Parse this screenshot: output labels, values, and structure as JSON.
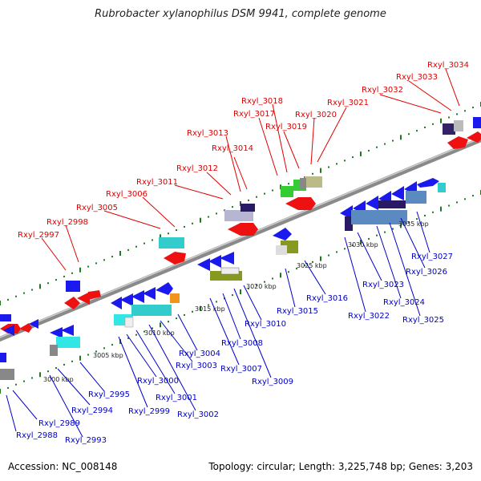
{
  "title": "Rubrobacter xylanophilus DSM 9941, complete genome",
  "footer": {
    "accession": "Accession: NC_008148",
    "summary": "Topology: circular; Length: 3,225,748 bp; Genes: 3,203"
  },
  "colors": {
    "plus_label": "#e00000",
    "minus_label": "#0000cc",
    "backbone": "#888888",
    "tick": "#1f7a1f"
  },
  "kbp_marks": [
    "3000 kbp",
    "3005 kbp",
    "3010 kbp",
    "3015 kbp",
    "3020 kbp",
    "3025 kbp",
    "3030 kbp",
    "3035 kbp"
  ],
  "plus_genes": [
    "Rxyl_2997",
    "Rxyl_2998",
    "Rxyl_3005",
    "Rxyl_3006",
    "Rxyl_3011",
    "Rxyl_3012",
    "Rxyl_3013",
    "Rxyl_3014",
    "Rxyl_3017",
    "Rxyl_3018",
    "Rxyl_3019",
    "Rxyl_3020",
    "Rxyl_3021",
    "Rxyl_3032",
    "Rxyl_3033",
    "Rxyl_3034"
  ],
  "minus_genes": [
    "Rxyl_2988",
    "Rxyl_2989",
    "Rxyl_2993",
    "Rxyl_2994",
    "Rxyl_2995",
    "Rxyl_2999",
    "Rxyl_3000",
    "Rxyl_3001",
    "Rxyl_3002",
    "Rxyl_3003",
    "Rxyl_3004",
    "Rxyl_3007",
    "Rxyl_3008",
    "Rxyl_3009",
    "Rxyl_3010",
    "Rxyl_3015",
    "Rxyl_3016",
    "Rxyl_3022",
    "Rxyl_3023",
    "Rxyl_3024",
    "Rxyl_3025",
    "Rxyl_3026",
    "Rxyl_3027"
  ]
}
